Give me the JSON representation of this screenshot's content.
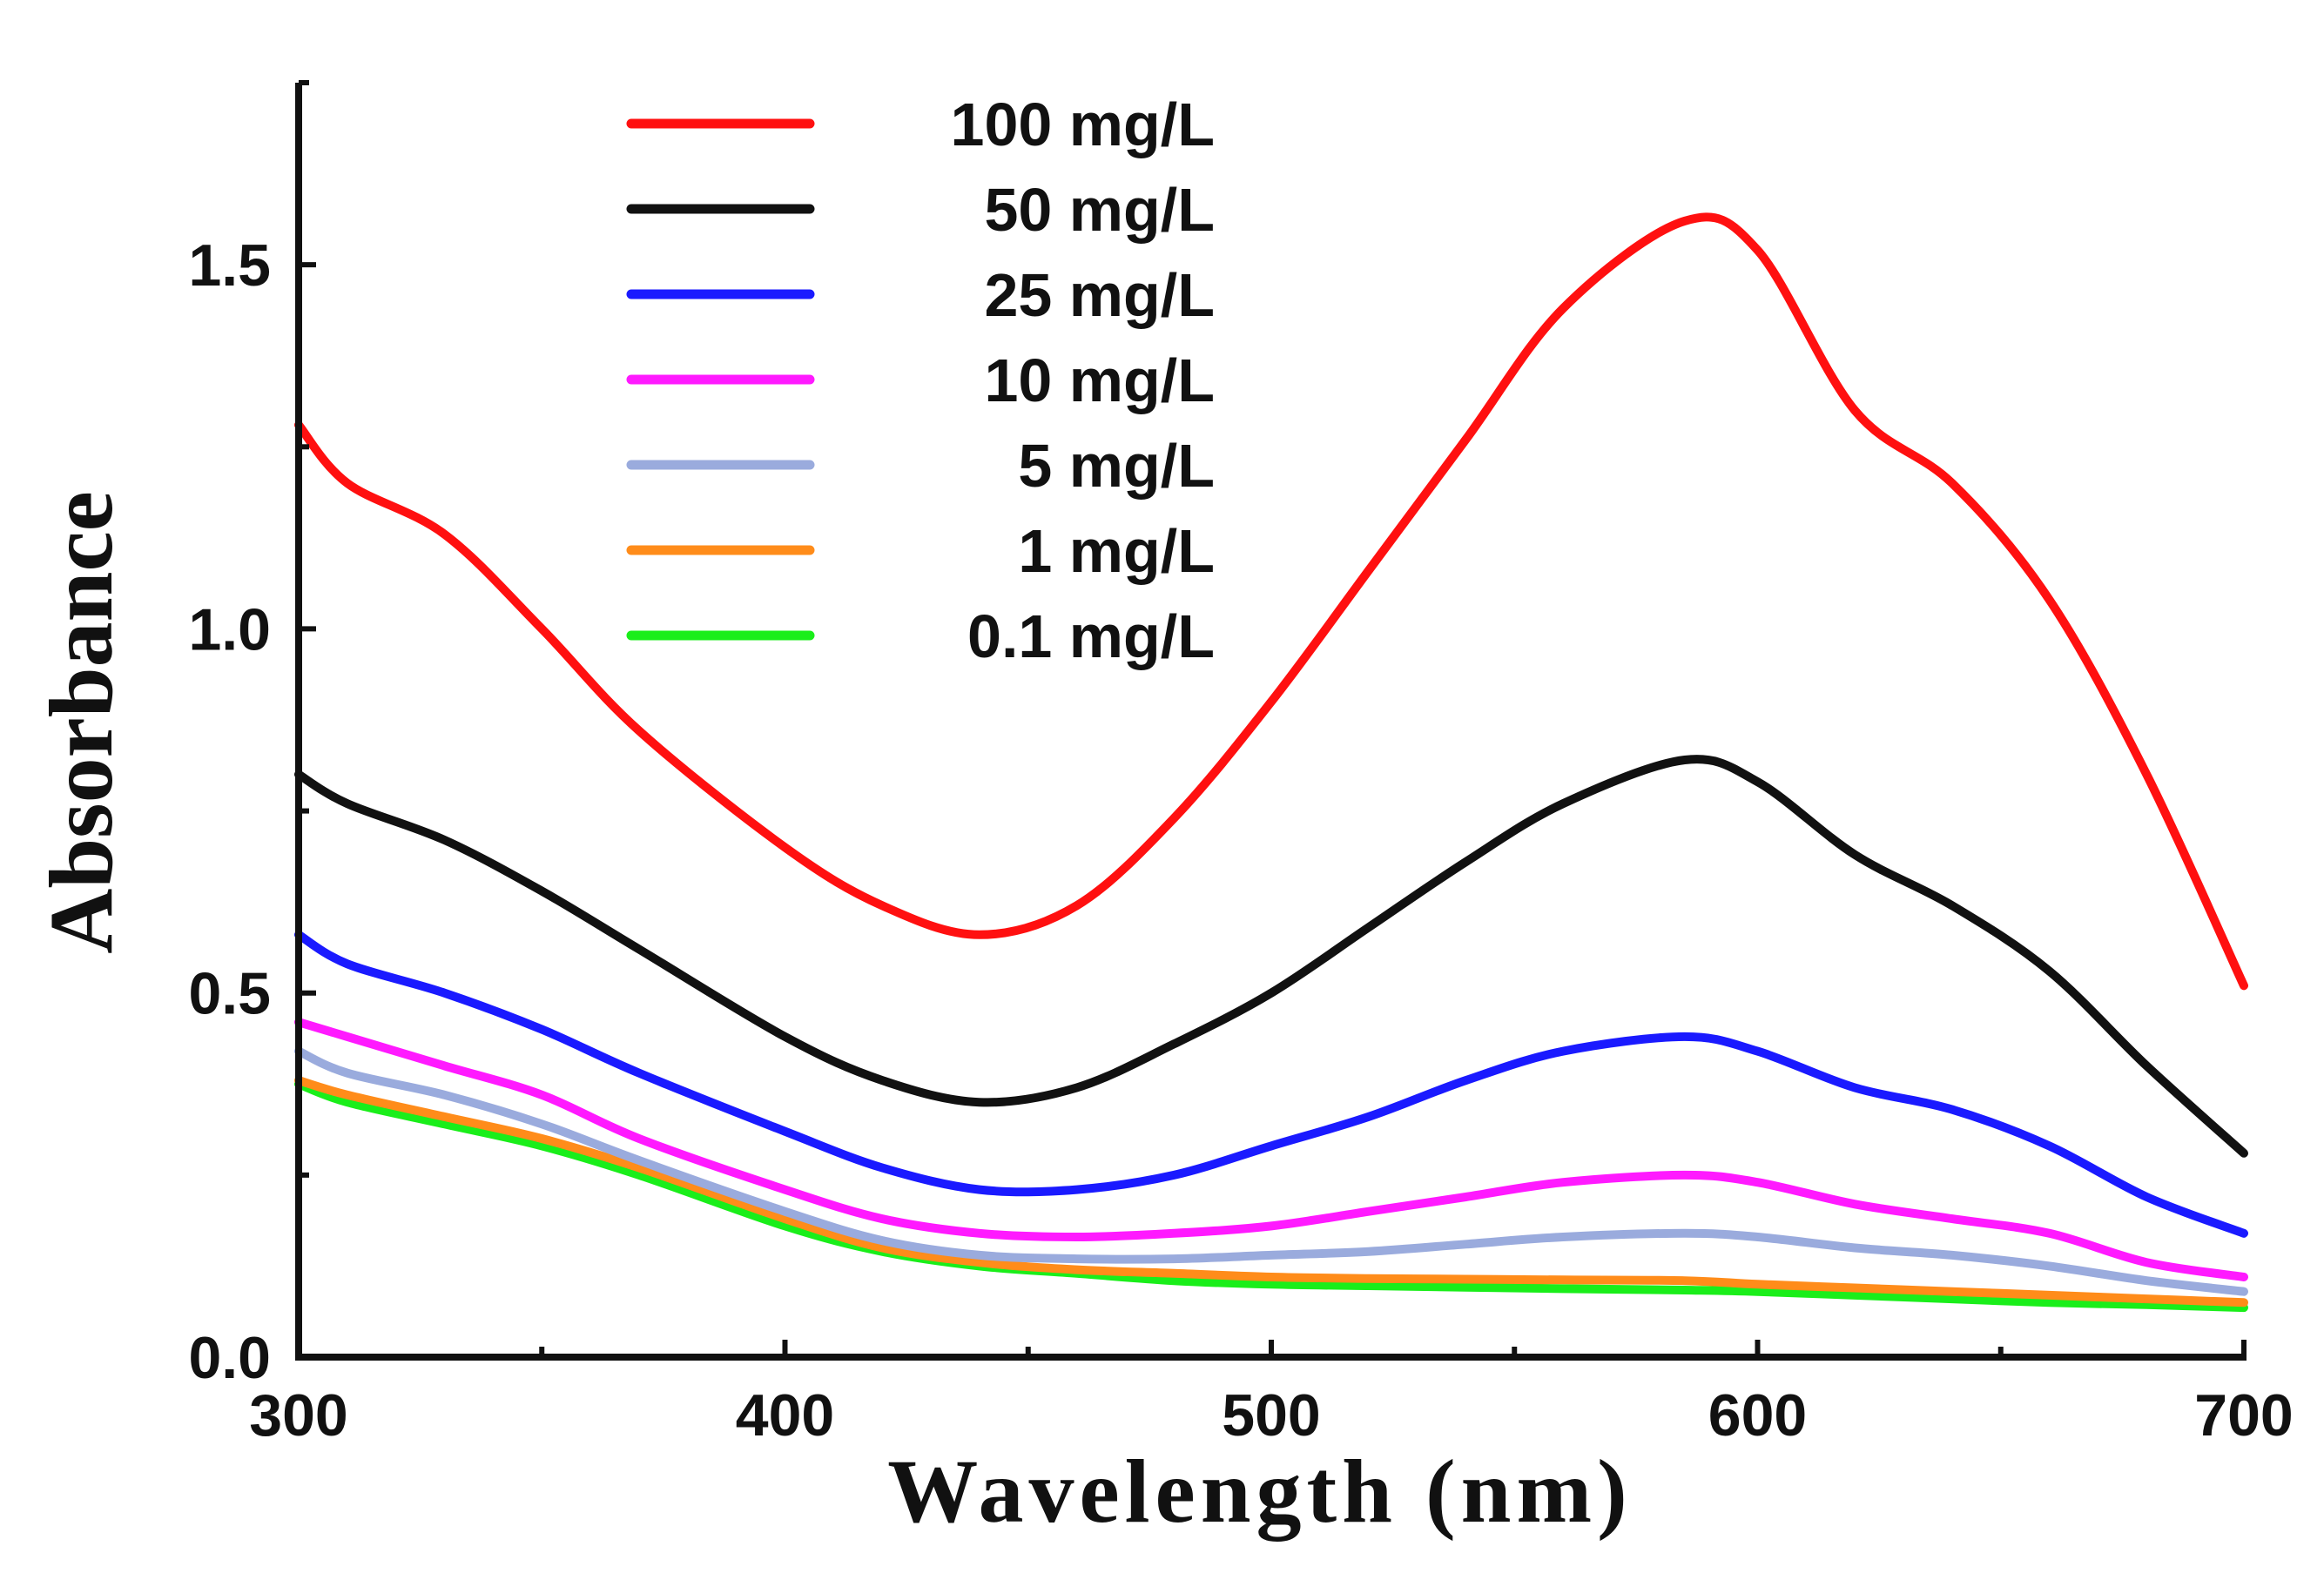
{
  "chart_data": {
    "type": "line",
    "title": "",
    "xlabel": "Wavelength (nm)",
    "ylabel": "Absorbance",
    "xlim": [
      300,
      700
    ],
    "ylim": [
      0.0,
      1.75
    ],
    "grid": false,
    "legend_position": "top-center",
    "x_ticks": [
      300,
      400,
      500,
      600,
      700
    ],
    "x_tick_labels": [
      "300",
      "400",
      "500",
      "600",
      "700"
    ],
    "y_ticks": [
      0.0,
      0.5,
      1.0,
      1.5
    ],
    "y_tick_labels": [
      "0.0",
      "0.5",
      "1.0",
      "1.5"
    ],
    "x": [
      300,
      310,
      330,
      350,
      370,
      400,
      420,
      440,
      460,
      480,
      500,
      520,
      540,
      560,
      585,
      600,
      620,
      640,
      660,
      680,
      700
    ],
    "series": [
      {
        "name": "100 mg/L",
        "color": "#ff1010",
        "values": [
          1.28,
          1.2,
          1.13,
          1.0,
          0.86,
          0.7,
          0.62,
          0.58,
          0.62,
          0.74,
          0.9,
          1.08,
          1.26,
          1.44,
          1.56,
          1.52,
          1.3,
          1.2,
          1.04,
          0.8,
          0.51
        ]
      },
      {
        "name": "50 mg/L",
        "color": "#111111",
        "values": [
          0.8,
          0.76,
          0.71,
          0.64,
          0.56,
          0.44,
          0.38,
          0.35,
          0.37,
          0.43,
          0.5,
          0.59,
          0.68,
          0.76,
          0.82,
          0.79,
          0.69,
          0.62,
          0.53,
          0.4,
          0.28
        ]
      },
      {
        "name": "25 mg/L",
        "color": "#1a1aff",
        "values": [
          0.58,
          0.54,
          0.5,
          0.45,
          0.39,
          0.31,
          0.26,
          0.23,
          0.23,
          0.25,
          0.29,
          0.33,
          0.38,
          0.42,
          0.44,
          0.42,
          0.37,
          0.34,
          0.29,
          0.22,
          0.17
        ]
      },
      {
        "name": "10 mg/L",
        "color": "#ff1aff",
        "values": [
          0.46,
          0.44,
          0.4,
          0.36,
          0.3,
          0.23,
          0.19,
          0.17,
          0.165,
          0.17,
          0.18,
          0.2,
          0.22,
          0.24,
          0.25,
          0.24,
          0.21,
          0.19,
          0.17,
          0.13,
          0.11
        ]
      },
      {
        "name": "5 mg/L",
        "color": "#9aabdd",
        "values": [
          0.42,
          0.39,
          0.36,
          0.32,
          0.27,
          0.2,
          0.16,
          0.14,
          0.135,
          0.135,
          0.14,
          0.145,
          0.155,
          0.165,
          0.17,
          0.165,
          0.15,
          0.14,
          0.125,
          0.105,
          0.09
        ]
      },
      {
        "name": "1 mg/L",
        "color": "#ff8c1a",
        "values": [
          0.38,
          0.36,
          0.33,
          0.3,
          0.26,
          0.19,
          0.15,
          0.13,
          0.12,
          0.115,
          0.11,
          0.108,
          0.107,
          0.106,
          0.105,
          0.1,
          0.095,
          0.09,
          0.085,
          0.08,
          0.075
        ]
      },
      {
        "name": "0.1 mg/L",
        "color": "#1aee1a",
        "values": [
          0.375,
          0.35,
          0.32,
          0.29,
          0.25,
          0.18,
          0.145,
          0.125,
          0.115,
          0.105,
          0.1,
          0.098,
          0.096,
          0.094,
          0.092,
          0.09,
          0.085,
          0.08,
          0.075,
          0.072,
          0.068
        ]
      }
    ]
  }
}
